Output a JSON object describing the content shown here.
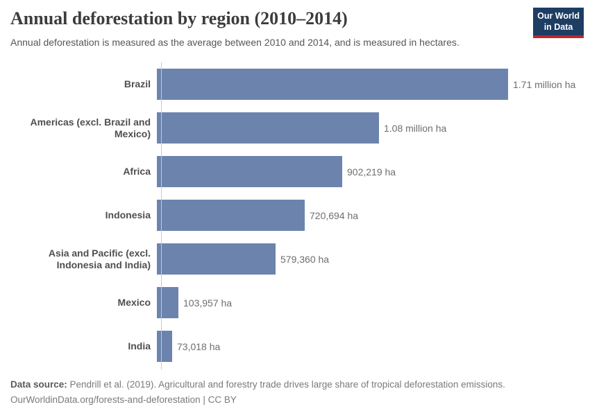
{
  "header": {
    "title": "Annual deforestation by region (2010–2014)",
    "subtitle": "Annual deforestation is measured as the average between 2010 and 2014, and is measured in hectares.",
    "logo": {
      "line1": "Our World",
      "line2": "in Data",
      "bg_color": "#1d3d63",
      "accent_color": "#c0262d"
    }
  },
  "chart_data": {
    "type": "bar",
    "orientation": "horizontal",
    "title": "Annual deforestation by region (2010–2014)",
    "xlabel": "",
    "ylabel": "",
    "unit": "ha",
    "grid": false,
    "legend": false,
    "xlim": [
      0,
      1710000
    ],
    "bar_color": "#6c84ad",
    "axis_color": "#c9c9c9",
    "categories": [
      "Brazil",
      "Americas (excl. Brazil and Mexico)",
      "Africa",
      "Indonesia",
      "Asia and Pacific (excl. Indonesia and India)",
      "Mexico",
      "India"
    ],
    "values": [
      1710000,
      1080000,
      902219,
      720694,
      579360,
      103957,
      73018
    ],
    "value_labels": [
      "1.71 million ha",
      "1.08 million ha",
      "902,219 ha",
      "720,694 ha",
      "579,360 ha",
      "103,957 ha",
      "73,018 ha"
    ]
  },
  "footer": {
    "source_label": "Data source:",
    "source_text": " Pendrill et al. (2019). Agricultural and forestry trade drives large share of tropical deforestation emissions.",
    "link_line": "OurWorldinData.org/forests-and-deforestation | CC BY"
  }
}
